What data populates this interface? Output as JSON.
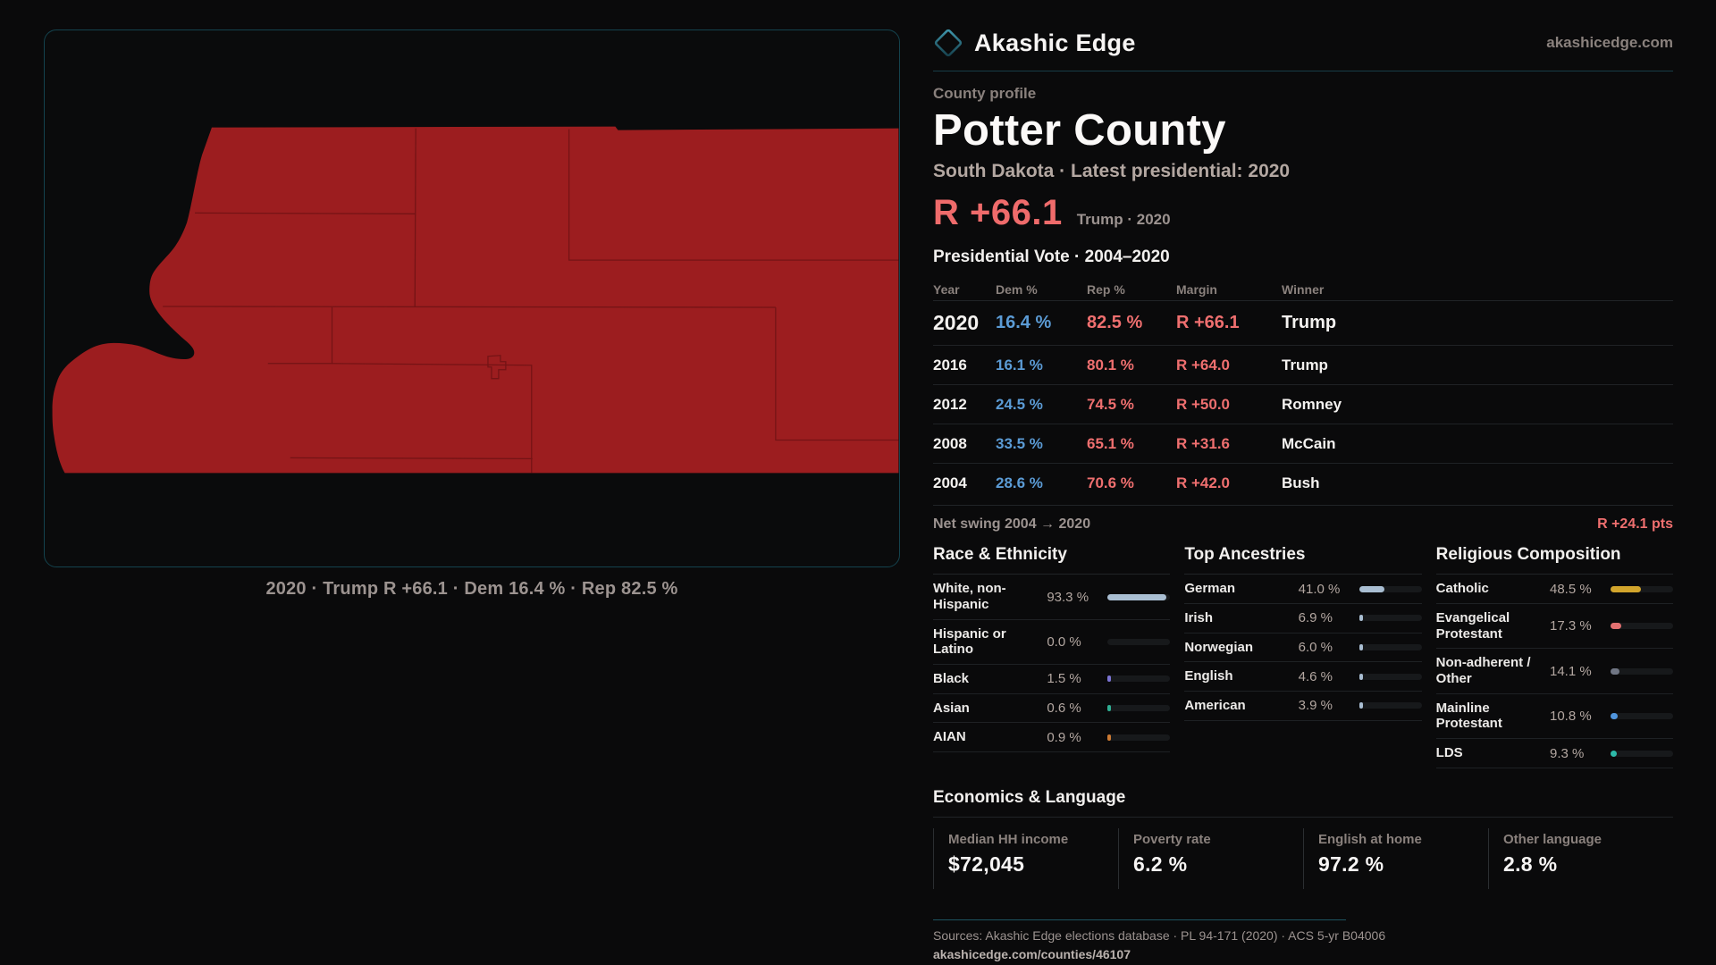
{
  "brand": {
    "name": "Akashic Edge",
    "domain": "akashicedge.com"
  },
  "header": {
    "kicker": "County profile",
    "title": "Potter County",
    "subtitle": "South Dakota · Latest presidential: 2020"
  },
  "margin_callout": {
    "value": "R +66.1",
    "context": "Trump · 2020"
  },
  "vote_table": {
    "title": "Presidential Vote · 2004–2020",
    "columns": [
      "Year",
      "Dem %",
      "Rep %",
      "Margin",
      "Winner"
    ],
    "rows": [
      {
        "year": "2020",
        "dem": "16.4 %",
        "rep": "82.5 %",
        "margin": "R +66.1",
        "winner": "Trump"
      },
      {
        "year": "2016",
        "dem": "16.1 %",
        "rep": "80.1 %",
        "margin": "R +64.0",
        "winner": "Trump"
      },
      {
        "year": "2012",
        "dem": "24.5 %",
        "rep": "74.5 %",
        "margin": "R +50.0",
        "winner": "Romney"
      },
      {
        "year": "2008",
        "dem": "33.5 %",
        "rep": "65.1 %",
        "margin": "R +31.6",
        "winner": "McCain"
      },
      {
        "year": "2004",
        "dem": "28.6 %",
        "rep": "70.6 %",
        "margin": "R +42.0",
        "winner": "Bush"
      }
    ]
  },
  "net_swing": {
    "label": "Net swing 2004 → 2020",
    "value": "R +24.1 pts"
  },
  "demographics": [
    {
      "title": "Race & Ethnicity",
      "rows": [
        {
          "label": "White, non-Hispanic",
          "value": "93.3 %",
          "pct": 93.3,
          "color": "#a9bed2"
        },
        {
          "label": "Hispanic or Latino",
          "value": "0.0 %",
          "pct": 0.0,
          "color": "#a9bed2"
        },
        {
          "label": "Black",
          "value": "1.5 %",
          "pct": 1.5,
          "color": "#7c74d4"
        },
        {
          "label": "Asian",
          "value": "0.6 %",
          "pct": 0.6,
          "color": "#2fae92"
        },
        {
          "label": "AIAN",
          "value": "0.9 %",
          "pct": 0.9,
          "color": "#cc7a33"
        }
      ]
    },
    {
      "title": "Top Ancestries",
      "rows": [
        {
          "label": "German",
          "value": "41.0 %",
          "pct": 41.0,
          "color": "#a9bed2"
        },
        {
          "label": "Irish",
          "value": "6.9 %",
          "pct": 6.9,
          "color": "#a9bed2"
        },
        {
          "label": "Norwegian",
          "value": "6.0 %",
          "pct": 6.0,
          "color": "#a9bed2"
        },
        {
          "label": "English",
          "value": "4.6 %",
          "pct": 4.6,
          "color": "#a9bed2"
        },
        {
          "label": "American",
          "value": "3.9 %",
          "pct": 3.9,
          "color": "#a9bed2"
        }
      ]
    },
    {
      "title": "Religious Composition",
      "rows": [
        {
          "label": "Catholic",
          "value": "48.5 %",
          "pct": 48.5,
          "color": "#d2a52c"
        },
        {
          "label": "Evangelical Protestant",
          "value": "17.3 %",
          "pct": 17.3,
          "color": "#e27070"
        },
        {
          "label": "Non-adherent / Other",
          "value": "14.1 %",
          "pct": 14.1,
          "color": "#707684"
        },
        {
          "label": "Mainline Protestant",
          "value": "10.8 %",
          "pct": 10.8,
          "color": "#4f94dc"
        },
        {
          "label": "LDS",
          "value": "9.3 %",
          "pct": 9.3,
          "color": "#2db9a8"
        }
      ]
    }
  ],
  "economics": {
    "title": "Economics & Language",
    "stats": [
      {
        "label": "Median HH income",
        "value": "$72,045"
      },
      {
        "label": "Poverty rate",
        "value": "6.2 %"
      },
      {
        "label": "English at home",
        "value": "97.2 %"
      },
      {
        "label": "Other language",
        "value": "2.8 %"
      }
    ]
  },
  "footer": {
    "sources": "Sources: Akashic Edge elections database · PL 94-171 (2020) · ACS 5-yr B04006",
    "url": "akashicedge.com/counties/46107"
  },
  "map": {
    "caption": "2020 · Trump R +66.1 · Dem 16.4 % · Rep 82.5 %",
    "fill_color": "#9c1d1f",
    "boundary_color": "#6e1214"
  },
  "accents": {
    "rep_red": "#ef6f6f",
    "dem_blue": "#5b9bd5",
    "teal_border": "#14434e"
  }
}
